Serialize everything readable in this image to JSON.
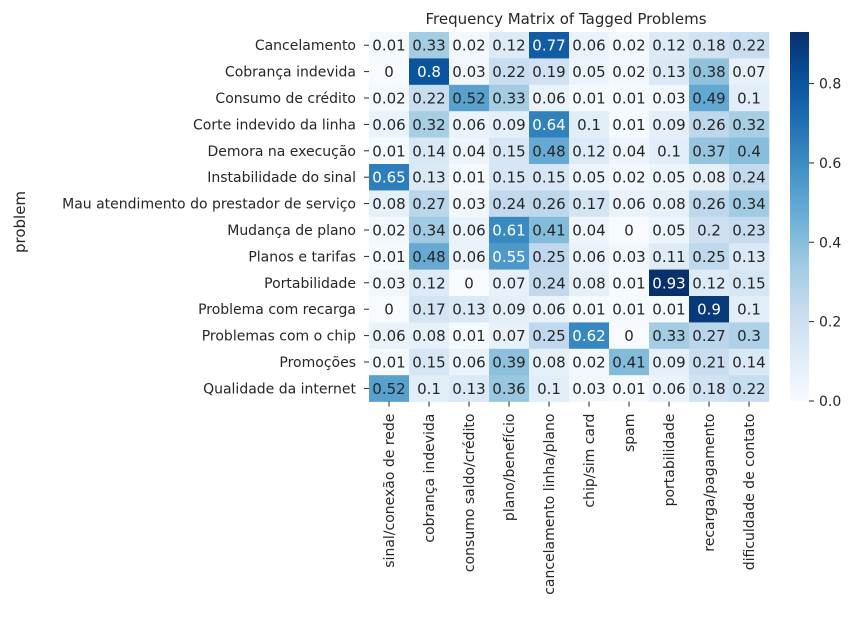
{
  "chart_data": {
    "type": "heatmap",
    "title": "Frequency Matrix of Tagged Problems",
    "ylabel": "problem",
    "xlabel": "",
    "colormap": "Blues",
    "value_range": [
      0,
      0.93
    ],
    "rows": [
      "Cancelamento",
      "Cobrança indevida",
      "Consumo de crédito",
      "Corte indevido da linha",
      "Demora na execução",
      "Instabilidade do sinal",
      "Mau atendimento do prestador de serviço",
      "Mudança de plano",
      "Planos e tarifas",
      "Portabilidade",
      "Problema com recarga",
      "Problemas com o chip",
      "Promoções",
      "Qualidade da internet"
    ],
    "columns": [
      "sinal/conexão de rede",
      "cobrança indevida",
      "consumo saldo/crédito",
      "plano/benefício",
      "cancelamento linha/plano",
      "chip/sim card",
      "spam",
      "portabilidade",
      "recarga/pagamento",
      "dificuldade de contato"
    ],
    "values": [
      [
        0.01,
        0.33,
        0.02,
        0.12,
        0.77,
        0.06,
        0.02,
        0.12,
        0.18,
        0.22
      ],
      [
        0,
        0.8,
        0.03,
        0.22,
        0.19,
        0.05,
        0.02,
        0.13,
        0.38,
        0.07
      ],
      [
        0.02,
        0.22,
        0.52,
        0.33,
        0.06,
        0.01,
        0.01,
        0.03,
        0.49,
        0.1
      ],
      [
        0.06,
        0.32,
        0.06,
        0.09,
        0.64,
        0.1,
        0.01,
        0.09,
        0.26,
        0.32
      ],
      [
        0.01,
        0.14,
        0.04,
        0.15,
        0.48,
        0.12,
        0.04,
        0.1,
        0.37,
        0.4
      ],
      [
        0.65,
        0.13,
        0.01,
        0.15,
        0.15,
        0.05,
        0.02,
        0.05,
        0.08,
        0.24
      ],
      [
        0.08,
        0.27,
        0.03,
        0.24,
        0.26,
        0.17,
        0.06,
        0.08,
        0.26,
        0.34
      ],
      [
        0.02,
        0.34,
        0.06,
        0.61,
        0.41,
        0.04,
        0,
        0.05,
        0.2,
        0.23
      ],
      [
        0.01,
        0.48,
        0.06,
        0.55,
        0.25,
        0.06,
        0.03,
        0.11,
        0.25,
        0.13
      ],
      [
        0.03,
        0.12,
        0,
        0.07,
        0.24,
        0.08,
        0.01,
        0.93,
        0.12,
        0.15
      ],
      [
        0,
        0.17,
        0.13,
        0.09,
        0.06,
        0.01,
        0.01,
        0.01,
        0.9,
        0.1
      ],
      [
        0.06,
        0.08,
        0.01,
        0.07,
        0.25,
        0.62,
        0,
        0.33,
        0.27,
        0.3
      ],
      [
        0.01,
        0.15,
        0.06,
        0.39,
        0.08,
        0.02,
        0.41,
        0.09,
        0.21,
        0.14
      ],
      [
        0.52,
        0.1,
        0.13,
        0.36,
        0.1,
        0.03,
        0.01,
        0.06,
        0.18,
        0.22
      ]
    ],
    "colorbar": {
      "ticks": [
        0.0,
        0.2,
        0.4,
        0.6,
        0.8
      ],
      "tick_labels": [
        "0.0",
        "0.2",
        "0.4",
        "0.6",
        "0.8"
      ]
    }
  }
}
